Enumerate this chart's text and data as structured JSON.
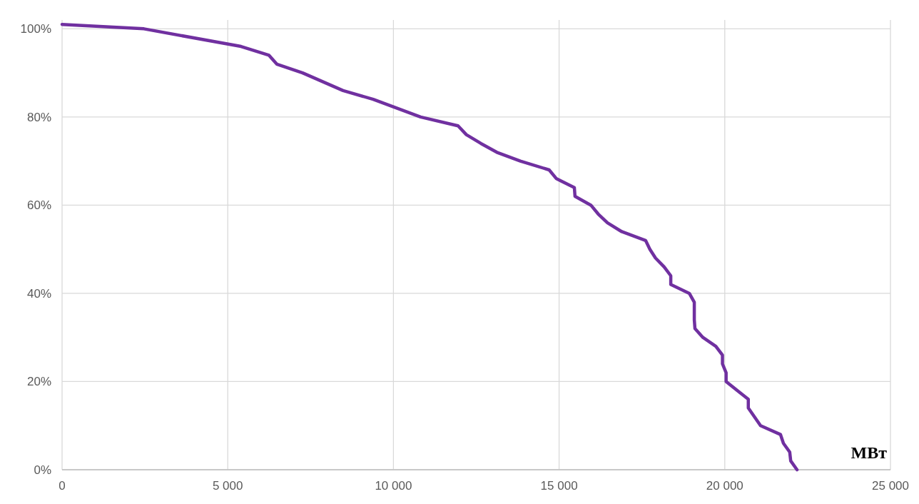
{
  "chart_data": {
    "type": "line",
    "xlabel": "МВт",
    "x": [
      0,
      2470,
      5400,
      6245,
      6480,
      7260,
      8480,
      9390,
      10820,
      11950,
      12200,
      12640,
      13120,
      13830,
      14700,
      14920,
      15460,
      15480,
      15960,
      16180,
      16460,
      16890,
      17610,
      17740,
      17910,
      18170,
      18370,
      18370,
      18930,
      19080,
      19080,
      19100,
      19340,
      19730,
      19930,
      19930,
      20040,
      20040,
      20370,
      20710,
      20710,
      21080,
      21680,
      21770,
      21960,
      21990,
      22180
    ],
    "series": [
      {
        "color": "#7030a0",
        "values": [
          101,
          100,
          96,
          94,
          92,
          90,
          86,
          84,
          80,
          78,
          76,
          74,
          72,
          70,
          68,
          66,
          64,
          62,
          60,
          58,
          56,
          54,
          52,
          50,
          48,
          46,
          44,
          42,
          40,
          38,
          34,
          32,
          30,
          28,
          26,
          24,
          22,
          20,
          18,
          16,
          14,
          10,
          8,
          6,
          4,
          2,
          0
        ]
      }
    ],
    "xlim": [
      0,
      25000
    ],
    "ylim": [
      0,
      102
    ],
    "xticks": [
      0,
      {
        "value": 5000,
        "label": "5 000"
      },
      {
        "value": 10000,
        "label": "10 000"
      },
      {
        "value": 15000,
        "label": "15 000"
      },
      {
        "value": 20000,
        "label": "20 000"
      },
      {
        "value": 25000,
        "label": "25 000"
      }
    ],
    "yticks": [
      {
        "value": 0,
        "label": "0%"
      },
      {
        "value": 20,
        "label": "20%"
      },
      {
        "value": 40,
        "label": "40%"
      },
      {
        "value": 60,
        "label": "60%"
      },
      {
        "value": 80,
        "label": "80%"
      },
      {
        "value": 100,
        "label": "100%"
      }
    ],
    "grid": true,
    "marker": "none",
    "line_style": "solid"
  }
}
